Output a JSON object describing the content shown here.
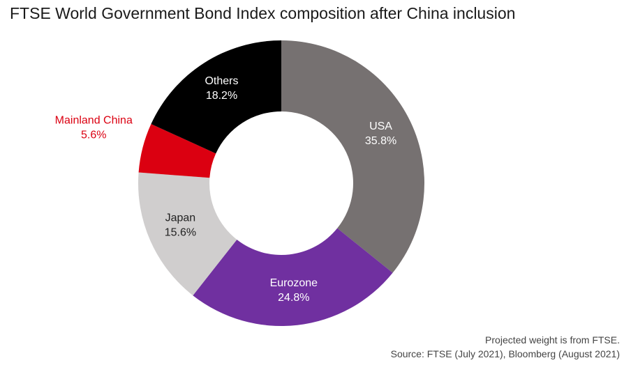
{
  "title": "FTSE World Government Bond Index composition after China inclusion",
  "notes": {
    "line1": "Projected weight is from FTSE.",
    "line2": "Source: FTSE (July 2021), Bloomberg (August 2021)"
  },
  "chart_data": {
    "type": "pie",
    "style": "donut",
    "title": "FTSE World Government Bond Index composition after China inclusion",
    "slices": [
      {
        "label": "USA",
        "value": 35.8,
        "value_label": "35.8%",
        "color": "#767171",
        "text_color": "#ffffff"
      },
      {
        "label": "Eurozone",
        "value": 24.8,
        "value_label": "24.8%",
        "color": "#7030a0",
        "text_color": "#ffffff"
      },
      {
        "label": "Japan",
        "value": 15.6,
        "value_label": "15.6%",
        "color": "#d0cece",
        "text_color": "#222222"
      },
      {
        "label": "Mainland China",
        "value": 5.6,
        "value_label": "5.6%",
        "color": "#db0011",
        "text_color": "#db0011",
        "label_outside": true
      },
      {
        "label": "Others",
        "value": 18.2,
        "value_label": "18.2%",
        "color": "#000000",
        "text_color": "#ffffff"
      }
    ]
  }
}
